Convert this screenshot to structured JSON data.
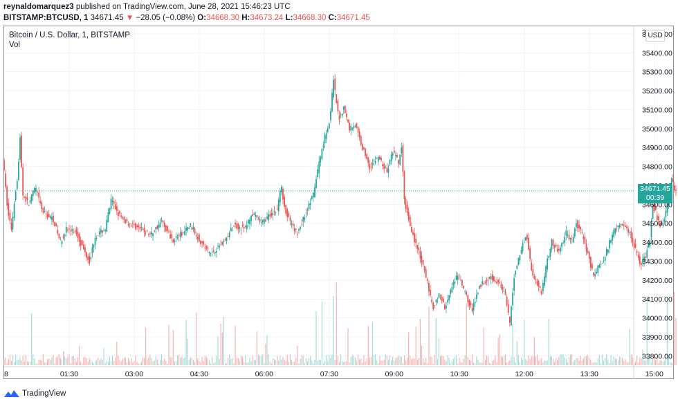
{
  "header": {
    "publisher": "reynaldomarquez3",
    "published_text": "published on TradingView.com, June 28, 2021 15:46:23 UTC",
    "symbol": "BITSTAMP:BTCUSD, 1",
    "last": "34671.45",
    "arrow": "▼",
    "change": "−28.05 (−0.08%)",
    "o_label": "O:",
    "o_value": "34668.30",
    "h_label": "H:",
    "h_value": "34673.24",
    "l_label": "L:",
    "l_value": "34668.30",
    "c_label": "C:",
    "c_value": "34671.45"
  },
  "legend": {
    "title": "Bitcoin / U.S. Dollar, 1, BITSTAMP",
    "vol": "Vol"
  },
  "currency_button": "USD",
  "last_price_tag": {
    "price": "34671.45",
    "countdown": "00:39"
  },
  "footer": {
    "brand": "TradingView"
  },
  "colors": {
    "up": "#26a69a",
    "down": "#ef5350",
    "vol_up": "#a7dbd6",
    "vol_down": "#f7b3b2",
    "grid": "#f0f3fa"
  },
  "icons": {
    "logo": "tradingview-logo-icon",
    "down_arrow": "triangle-down-icon"
  },
  "chart_data": {
    "type": "candlestick",
    "title": "Bitcoin / U.S. Dollar, 1, BITSTAMP",
    "y_tick_labels": [
      "33800.00",
      "33900.00",
      "34000.00",
      "34100.00",
      "34200.00",
      "34300.00",
      "34400.00",
      "34500.00",
      "34600.00",
      "34700.00",
      "34800.00",
      "34900.00",
      "35000.00",
      "35100.00",
      "35200.00",
      "35300.00",
      "35400.00",
      "35500.00"
    ],
    "top_tick_partial": "35",
    "x_tick_labels": [
      "01:30",
      "03:00",
      "04:30",
      "06:00",
      "07:30",
      "09:00",
      "10:30",
      "12:00",
      "13:30",
      "15:00"
    ],
    "left_edge_label": "8",
    "ylim": [
      33750,
      35540
    ],
    "last_price": 34671.45,
    "volume_series_name": "Vol",
    "price_path": [
      [
        "00:00",
        34850
      ],
      [
        "00:07",
        34560
      ],
      [
        "00:12",
        34470
      ],
      [
        "00:18",
        34680
      ],
      [
        "00:21",
        34760
      ],
      [
        "00:24",
        34950
      ],
      [
        "00:28",
        34650
      ],
      [
        "00:36",
        34600
      ],
      [
        "00:45",
        34690
      ],
      [
        "00:55",
        34560
      ],
      [
        "01:10",
        34520
      ],
      [
        "01:20",
        34400
      ],
      [
        "01:28",
        34470
      ],
      [
        "01:42",
        34450
      ],
      [
        "01:52",
        34360
      ],
      [
        "02:00",
        34300
      ],
      [
        "02:08",
        34430
      ],
      [
        "02:22",
        34470
      ],
      [
        "02:30",
        34620
      ],
      [
        "02:45",
        34520
      ],
      [
        "03:05",
        34480
      ],
      [
        "03:25",
        34440
      ],
      [
        "03:40",
        34510
      ],
      [
        "03:55",
        34410
      ],
      [
        "04:10",
        34450
      ],
      [
        "04:20",
        34490
      ],
      [
        "04:28",
        34440
      ],
      [
        "04:38",
        34380
      ],
      [
        "04:48",
        34340
      ],
      [
        "05:00",
        34380
      ],
      [
        "05:10",
        34420
      ],
      [
        "05:20",
        34490
      ],
      [
        "05:35",
        34470
      ],
      [
        "05:45",
        34550
      ],
      [
        "05:58",
        34500
      ],
      [
        "06:12",
        34550
      ],
      [
        "06:20",
        34570
      ],
      [
        "06:25",
        34700
      ],
      [
        "06:32",
        34560
      ],
      [
        "06:42",
        34470
      ],
      [
        "06:48",
        34450
      ],
      [
        "06:58",
        34540
      ],
      [
        "07:10",
        34650
      ],
      [
        "07:18",
        34820
      ],
      [
        "07:26",
        34960
      ],
      [
        "07:32",
        35030
      ],
      [
        "07:38",
        35250
      ],
      [
        "07:45",
        35050
      ],
      [
        "07:52",
        35110
      ],
      [
        "08:00",
        35000
      ],
      [
        "08:08",
        35020
      ],
      [
        "08:18",
        34900
      ],
      [
        "08:28",
        34800
      ],
      [
        "08:40",
        34850
      ],
      [
        "08:52",
        34770
      ],
      [
        "09:00",
        34880
      ],
      [
        "09:08",
        34820
      ],
      [
        "09:12",
        34900
      ],
      [
        "09:16",
        34620
      ],
      [
        "09:22",
        34520
      ],
      [
        "09:30",
        34410
      ],
      [
        "09:38",
        34320
      ],
      [
        "09:48",
        34190
      ],
      [
        "09:55",
        34050
      ],
      [
        "10:05",
        34130
      ],
      [
        "10:12",
        34050
      ],
      [
        "10:20",
        34140
      ],
      [
        "10:30",
        34230
      ],
      [
        "10:40",
        34130
      ],
      [
        "10:50",
        34040
      ],
      [
        "11:00",
        34170
      ],
      [
        "11:15",
        34220
      ],
      [
        "11:25",
        34190
      ],
      [
        "11:35",
        34130
      ],
      [
        "11:42",
        33970
      ],
      [
        "11:48",
        34220
      ],
      [
        "11:56",
        34340
      ],
      [
        "12:05",
        34450
      ],
      [
        "12:12",
        34250
      ],
      [
        "12:20",
        34180
      ],
      [
        "12:26",
        34140
      ],
      [
        "12:32",
        34270
      ],
      [
        "12:40",
        34400
      ],
      [
        "12:50",
        34350
      ],
      [
        "13:00",
        34450
      ],
      [
        "13:08",
        34400
      ],
      [
        "13:14",
        34500
      ],
      [
        "13:22",
        34440
      ],
      [
        "13:30",
        34340
      ],
      [
        "13:38",
        34220
      ],
      [
        "13:46",
        34280
      ],
      [
        "13:52",
        34300
      ],
      [
        "14:00",
        34400
      ],
      [
        "14:08",
        34480
      ],
      [
        "14:16",
        34500
      ],
      [
        "14:28",
        34450
      ],
      [
        "14:38",
        34340
      ],
      [
        "14:44",
        34280
      ],
      [
        "14:50",
        34330
      ],
      [
        "14:56",
        34420
      ],
      [
        "15:00",
        34600
      ],
      [
        "15:06",
        34530
      ],
      [
        "15:12",
        34480
      ],
      [
        "15:18",
        34560
      ],
      [
        "15:26",
        34740
      ],
      [
        "15:30",
        34671.45
      ]
    ]
  }
}
